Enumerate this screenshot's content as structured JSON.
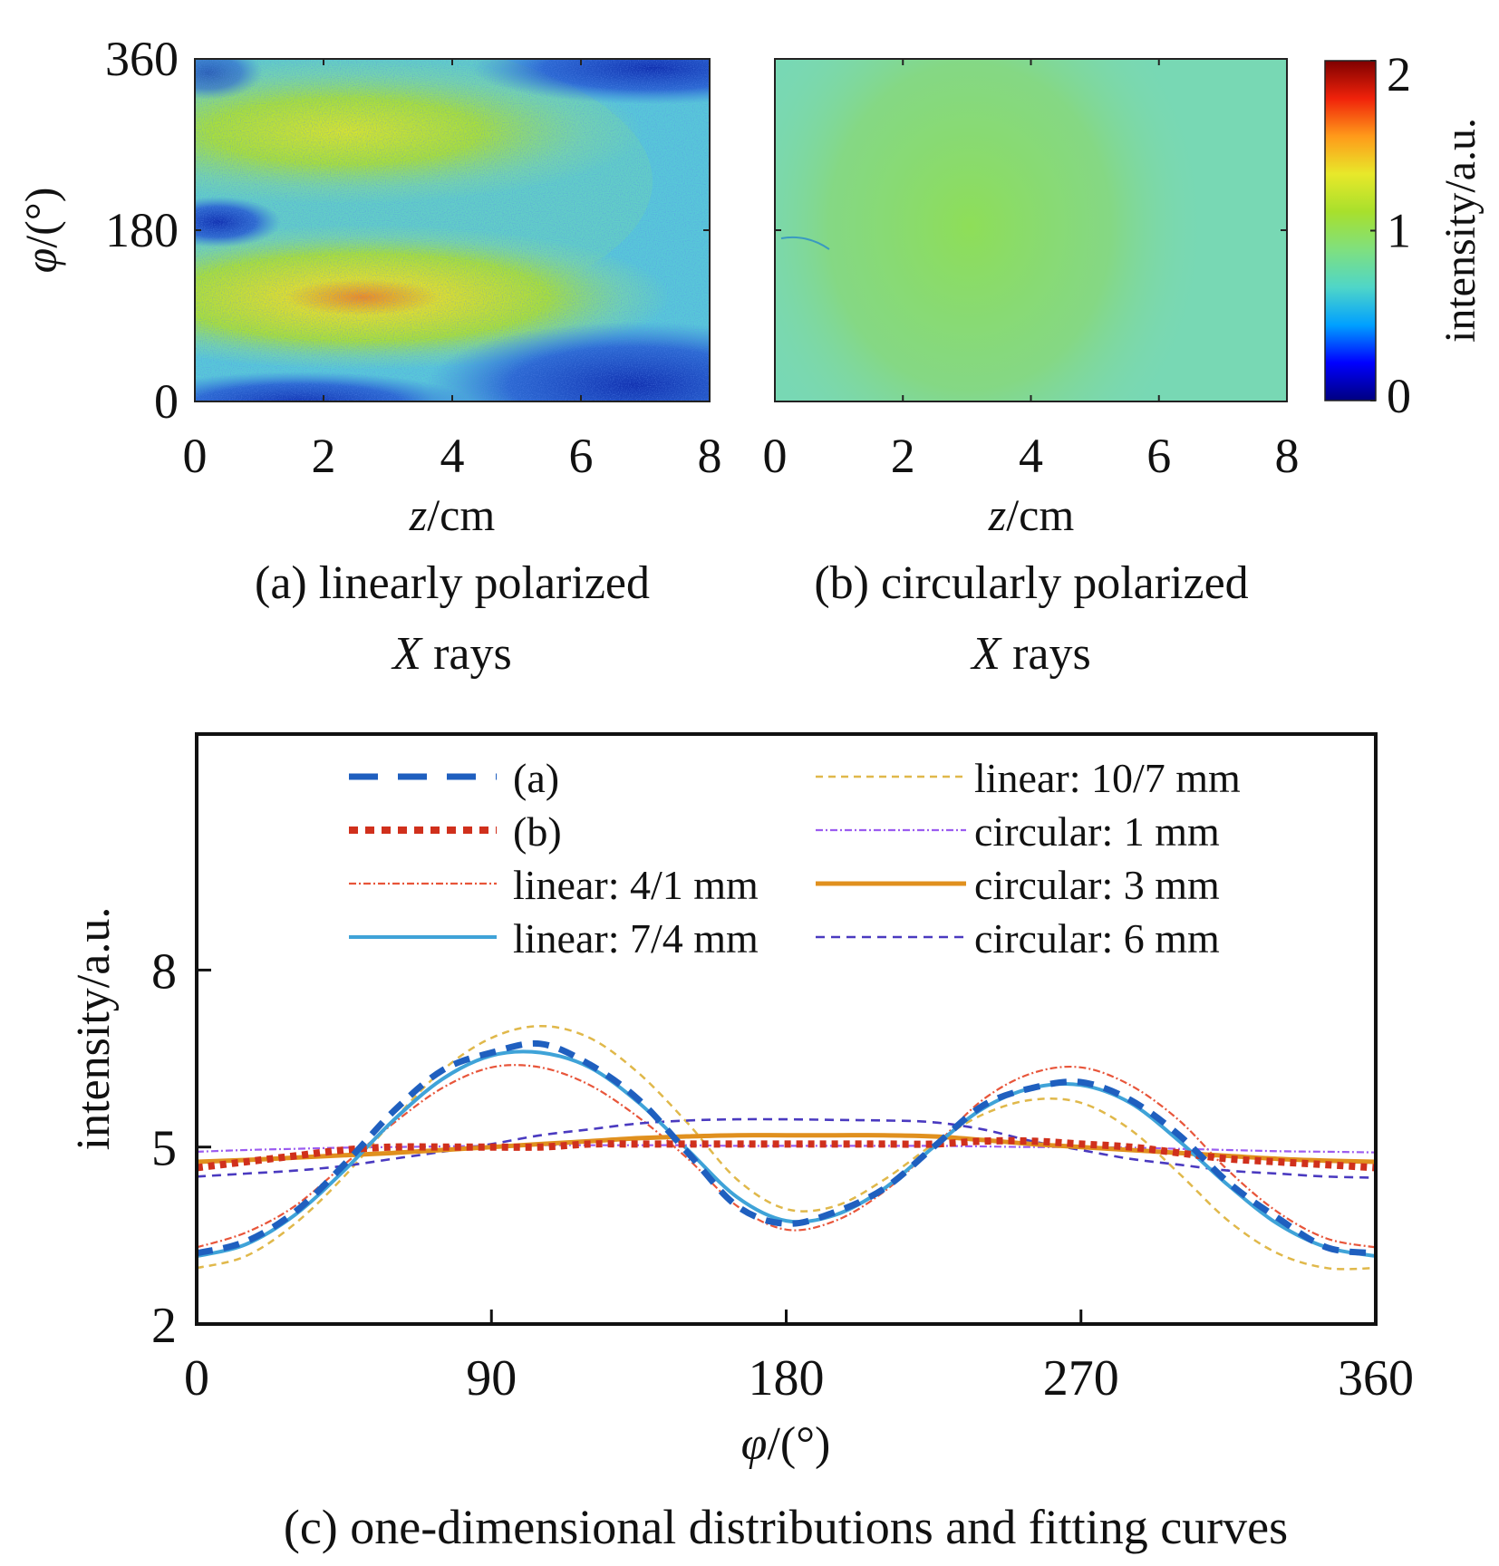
{
  "figure": {
    "panel_a_caption_line1": "(a) linearly polarized",
    "panel_a_caption_line2_italic": "X",
    "panel_a_caption_line2_rest": " rays",
    "panel_b_caption_line1": "(b) circularly polarized",
    "panel_b_caption_line2_italic": "X",
    "panel_b_caption_line2_rest": " rays",
    "panel_c_caption": "(c) one-dimensional distributions and fitting curves"
  },
  "chart_data": [
    {
      "id": "a",
      "type": "heatmap",
      "title": "(a) linearly polarized X rays",
      "xlabel_italic": "z",
      "xlabel_rest": "/cm",
      "ylabel_italic": "φ",
      "ylabel_rest": "/(°)",
      "xlim": [
        0,
        8
      ],
      "ylim": [
        0,
        360
      ],
      "xticks": [
        "0",
        "2",
        "4",
        "6",
        "8"
      ],
      "yticks": [
        "0",
        "180",
        "360"
      ],
      "xtick_values": [
        0,
        2,
        4,
        6,
        8
      ],
      "ytick_values": [
        0,
        180,
        360
      ],
      "background_level": 0.75,
      "features": [
        {
          "description": "bright lobe",
          "z_center": 2.0,
          "phi_center": 270,
          "z_extent": [
            0,
            6
          ],
          "phi_extent": [
            210,
            330
          ],
          "peak_intensity": 1.35
        },
        {
          "description": "bright lobe",
          "z_center": 2.5,
          "phi_center": 95,
          "z_extent": [
            0,
            6
          ],
          "phi_extent": [
            40,
            160
          ],
          "peak_intensity": 1.55
        },
        {
          "description": "low-intensity band",
          "z_extent": [
            0,
            1
          ],
          "phi_extent": [
            170,
            200
          ],
          "peak_intensity": 0.3
        },
        {
          "description": "low-intensity region",
          "z_extent": [
            4.5,
            8
          ],
          "phi_extent": [
            0,
            50
          ],
          "peak_intensity": 0.25
        },
        {
          "description": "low-intensity region",
          "z_extent": [
            5,
            8
          ],
          "phi_extent": [
            330,
            360
          ],
          "peak_intensity": 0.3
        }
      ]
    },
    {
      "id": "b",
      "type": "heatmap",
      "title": "(b) circularly polarized X rays",
      "xlabel_italic": "z",
      "xlabel_rest": "/cm",
      "xlim": [
        0,
        8
      ],
      "ylim": [
        0,
        360
      ],
      "xticks": [
        "0",
        "2",
        "4",
        "6",
        "8"
      ],
      "xtick_values": [
        0,
        2,
        4,
        6,
        8
      ],
      "ytick_values": [
        0,
        180,
        360
      ],
      "background_level": 0.95,
      "features": [
        {
          "description": "uniform, slightly brighter center",
          "z_center": 3.8,
          "phi_center": 180,
          "peak_intensity": 1.05
        }
      ]
    },
    {
      "id": "colorbar",
      "type": "colorbar",
      "label": "intensity/a.u.",
      "range": [
        0,
        2
      ],
      "ticks": [
        "0",
        "1",
        "2"
      ],
      "tick_values": [
        0,
        1,
        2
      ],
      "colormap": "jet",
      "colormap_stops": [
        "#00007f",
        "#0000ff",
        "#00a0ff",
        "#4fd6c8",
        "#7fe07f",
        "#a8e02c",
        "#e8e82a",
        "#ff9a1a",
        "#f0220a",
        "#7f0000"
      ]
    },
    {
      "id": "c",
      "type": "line",
      "title": "(c) one-dimensional distributions and fitting curves",
      "xlabel_italic": "φ",
      "xlabel_rest": "/(°)",
      "ylabel": "intensity/a.u.",
      "xlim": [
        0,
        360
      ],
      "ylim": [
        2,
        12
      ],
      "xticks": [
        "0",
        "90",
        "180",
        "270",
        "360"
      ],
      "xtick_values": [
        0,
        90,
        180,
        270,
        360
      ],
      "yticks": [
        "2",
        "5",
        "8"
      ],
      "ytick_values": [
        2,
        5,
        8
      ],
      "grid": false,
      "legend_position": "top",
      "x": [
        0,
        15,
        30,
        45,
        60,
        75,
        90,
        105,
        120,
        135,
        150,
        165,
        180,
        195,
        210,
        225,
        240,
        255,
        270,
        285,
        300,
        315,
        330,
        345,
        360
      ],
      "series": [
        {
          "name": "(a)",
          "color": "#1f5fbf",
          "style": "dash-thick",
          "values": [
            3.2,
            3.4,
            3.9,
            4.7,
            5.6,
            6.3,
            6.6,
            6.75,
            6.4,
            5.8,
            4.9,
            4.0,
            3.7,
            3.9,
            4.3,
            5.0,
            5.7,
            6.0,
            6.1,
            5.8,
            5.2,
            4.4,
            3.8,
            3.3,
            3.2
          ]
        },
        {
          "name": "(b)",
          "color": "#d0301c",
          "style": "dot-thick",
          "values": [
            4.65,
            4.75,
            4.85,
            4.95,
            5.0,
            5.0,
            5.0,
            5.0,
            5.05,
            5.05,
            5.05,
            5.05,
            5.05,
            5.05,
            5.05,
            5.05,
            5.1,
            5.1,
            5.05,
            5.0,
            4.9,
            4.8,
            4.75,
            4.7,
            4.65
          ]
        },
        {
          "name": "linear: 4/1 mm",
          "color": "#e8553a",
          "style": "dashdot-thin",
          "values": [
            3.3,
            3.55,
            4.0,
            4.7,
            5.4,
            6.0,
            6.35,
            6.35,
            6.05,
            5.5,
            4.8,
            4.0,
            3.6,
            3.75,
            4.25,
            5.0,
            5.8,
            6.25,
            6.35,
            6.05,
            5.45,
            4.6,
            3.9,
            3.45,
            3.3
          ]
        },
        {
          "name": "linear: 7/4 mm",
          "color": "#3fa3d8",
          "style": "solid",
          "values": [
            3.15,
            3.35,
            3.85,
            4.6,
            5.45,
            6.15,
            6.55,
            6.6,
            6.35,
            5.75,
            4.95,
            4.15,
            3.75,
            3.85,
            4.3,
            5.0,
            5.65,
            6.0,
            6.05,
            5.75,
            5.1,
            4.35,
            3.7,
            3.3,
            3.15
          ]
        },
        {
          "name": "linear: 10/7 mm",
          "color": "#e0b84a",
          "style": "dash-thin",
          "values": [
            2.95,
            3.15,
            3.7,
            4.5,
            5.45,
            6.3,
            6.85,
            7.05,
            6.85,
            6.25,
            5.4,
            4.45,
            3.95,
            4.0,
            4.45,
            5.05,
            5.55,
            5.8,
            5.75,
            5.3,
            4.55,
            3.75,
            3.2,
            2.95,
            2.95
          ]
        },
        {
          "name": "circular: 1 mm",
          "color": "#9b5cf0",
          "style": "dashdot-thin",
          "values": [
            4.92,
            4.95,
            4.97,
            4.99,
            5.0,
            5.01,
            5.02,
            5.03,
            5.03,
            5.03,
            5.03,
            5.02,
            5.02,
            5.02,
            5.02,
            5.02,
            5.01,
            5.0,
            5.0,
            4.99,
            4.97,
            4.95,
            4.93,
            4.92,
            4.91
          ]
        },
        {
          "name": "circular: 3 mm",
          "color": "#e0901e",
          "style": "solid-thick",
          "values": [
            4.75,
            4.78,
            4.82,
            4.86,
            4.9,
            4.95,
            5.0,
            5.05,
            5.1,
            5.15,
            5.18,
            5.2,
            5.2,
            5.2,
            5.2,
            5.18,
            5.12,
            5.05,
            5.0,
            4.95,
            4.9,
            4.85,
            4.8,
            4.77,
            4.75
          ]
        },
        {
          "name": "circular: 6 mm",
          "color": "#4a3ac0",
          "style": "dash-medium",
          "values": [
            4.5,
            4.55,
            4.6,
            4.68,
            4.8,
            4.92,
            5.05,
            5.2,
            5.3,
            5.4,
            5.45,
            5.47,
            5.47,
            5.46,
            5.45,
            5.42,
            5.3,
            5.1,
            4.95,
            4.8,
            4.7,
            4.6,
            4.55,
            4.5,
            4.48
          ]
        }
      ]
    }
  ]
}
